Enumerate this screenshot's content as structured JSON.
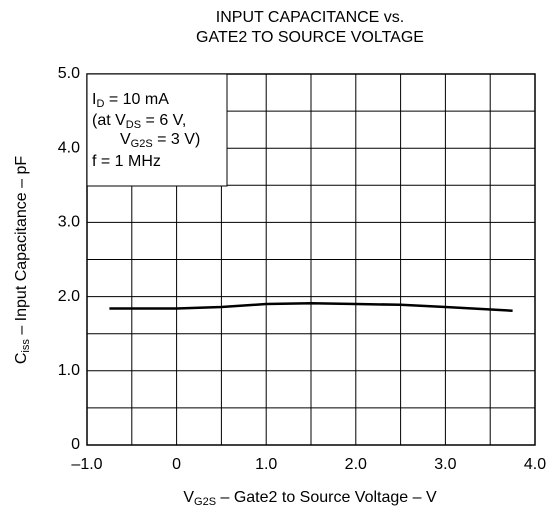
{
  "chart_data": {
    "type": "line",
    "title": [
      "INPUT CAPACITANCE vs.",
      "GATE2 TO SOURCE VOLTAGE"
    ],
    "xlabel": [
      "V",
      "G2S",
      " – Gate2 to Source Voltage – V"
    ],
    "ylabel": [
      "C",
      "iss",
      " – Input Capacitance – pF"
    ],
    "annotation": [
      [
        "I",
        "D",
        " = 10 mA"
      ],
      [
        "(at V",
        "DS",
        " = 6 V,"
      ],
      [
        "V",
        "G2S",
        " = 3 V)"
      ],
      [
        "f = 1 MHz"
      ]
    ],
    "x": [
      -0.75,
      0,
      0.5,
      1.0,
      1.5,
      2.0,
      2.5,
      3.0,
      3.75
    ],
    "values": [
      1.84,
      1.84,
      1.86,
      1.9,
      1.91,
      1.9,
      1.89,
      1.86,
      1.81
    ],
    "color": "#000000",
    "xlim": [
      -1,
      4
    ],
    "ylim": [
      0,
      5
    ],
    "xticks": [
      {
        "value": -1,
        "label": "–1.0"
      },
      0,
      {
        "value": 1,
        "label": "1.0"
      },
      {
        "value": 2,
        "label": "2.0"
      },
      {
        "value": 3,
        "label": "3.0"
      },
      {
        "value": 4,
        "label": "4.0"
      }
    ],
    "yticks": [
      0,
      {
        "value": 1,
        "label": "1.0"
      },
      {
        "value": 2,
        "label": "2.0"
      },
      {
        "value": 3,
        "label": "3.0"
      },
      {
        "value": 4,
        "label": "4.0"
      },
      {
        "value": 5,
        "label": "5.0"
      }
    ],
    "grid": true,
    "minor_grid": true
  }
}
